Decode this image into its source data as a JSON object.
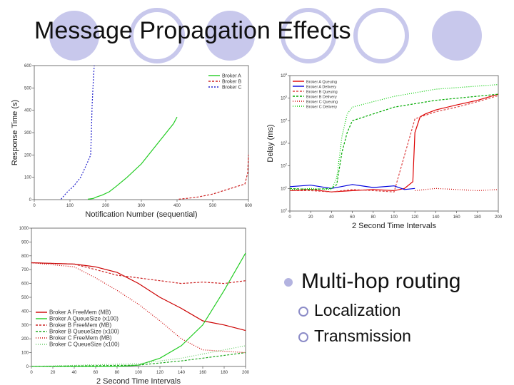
{
  "slide": {
    "title": "Message Propagation Effects",
    "colors": {
      "accent_circle": "#c8c8ec",
      "bullet": "#b3b3e0"
    }
  },
  "bullets": {
    "main": "Multi-hop routing",
    "sub": [
      "Localization",
      "Transmission"
    ]
  },
  "chart_data": [
    {
      "type": "line",
      "xlabel": "Notification Number (sequential)",
      "ylabel": "Response Time (s)",
      "xlim": [
        0,
        600
      ],
      "ylim": [
        0,
        600
      ],
      "xticks": [
        0,
        100,
        200,
        300,
        400,
        500,
        600
      ],
      "yticks": [
        0,
        100,
        200,
        300,
        400,
        500,
        600
      ],
      "legend_position": "top-right",
      "series": [
        {
          "name": "Broker A",
          "color": "#22cc22",
          "dash": "",
          "x": [
            150,
            165,
            175,
            190,
            210,
            230,
            260,
            300,
            340,
            370,
            390,
            400
          ],
          "y": [
            2,
            5,
            12,
            20,
            35,
            60,
            100,
            160,
            240,
            300,
            340,
            370
          ]
        },
        {
          "name": "Broker B",
          "color": "#cc2222",
          "dash": "3,2",
          "x": [
            405,
            430,
            460,
            500,
            540,
            570,
            590,
            598,
            600
          ],
          "y": [
            2,
            6,
            12,
            25,
            45,
            60,
            70,
            120,
            200
          ]
        },
        {
          "name": "Broker C",
          "color": "#2222cc",
          "dash": "2,2",
          "x": [
            75,
            90,
            110,
            130,
            150,
            158,
            160,
            162,
            165,
            168
          ],
          "y": [
            2,
            30,
            60,
            100,
            170,
            200,
            300,
            420,
            520,
            600
          ]
        }
      ]
    },
    {
      "type": "line",
      "xlabel": "2 Second Time Intervals",
      "ylabel": "Delay (ms)",
      "xlim": [
        0,
        200
      ],
      "ylim": [
        0,
        1000000
      ],
      "yscale": "log",
      "xticks": [
        0,
        20,
        40,
        60,
        80,
        100,
        120,
        140,
        160,
        180,
        200
      ],
      "ytick_exponents": [
        0,
        1,
        2,
        3,
        4,
        5,
        6
      ],
      "legend_position": "top-left",
      "series": [
        {
          "name": "Broker A Queuing",
          "color": "#dd0000",
          "dash": "",
          "x": [
            0,
            20,
            40,
            60,
            80,
            100,
            110,
            118,
            120,
            125,
            130,
            140,
            160,
            180,
            200
          ],
          "y": [
            8,
            9,
            7,
            8,
            9,
            8,
            10,
            20,
            3000,
            15000,
            20000,
            30000,
            50000,
            80000,
            150000
          ]
        },
        {
          "name": "Broker A Delivery",
          "color": "#0000dd",
          "dash": "",
          "x": [
            0,
            20,
            40,
            60,
            80,
            100,
            110,
            120
          ],
          "y": [
            12,
            14,
            10,
            15,
            11,
            13,
            9,
            10
          ]
        },
        {
          "name": "Broker B Queuing",
          "color": "#dd4444",
          "dash": "3,2",
          "x": [
            0,
            20,
            40,
            60,
            80,
            100,
            120,
            140,
            160,
            180,
            200
          ],
          "y": [
            8,
            8,
            7,
            9,
            8,
            7,
            12000,
            25000,
            40000,
            70000,
            130000
          ]
        },
        {
          "name": "Broker B Delivery",
          "color": "#00aa00",
          "dash": "3,2",
          "x": [
            0,
            20,
            40,
            45,
            50,
            55,
            60,
            80,
            100,
            140,
            200
          ],
          "y": [
            10,
            9,
            10,
            15,
            400,
            3000,
            10000,
            20000,
            40000,
            80000,
            150000
          ]
        },
        {
          "name": "Broker C Queuing",
          "color": "#cc0000",
          "dash": "1,2",
          "x": [
            120,
            140,
            160,
            180,
            200
          ],
          "y": [
            8,
            10,
            9,
            8,
            9
          ]
        },
        {
          "name": "Broker C Delivery",
          "color": "#00cc00",
          "dash": "1,2",
          "x": [
            0,
            20,
            40,
            45,
            50,
            55,
            60,
            80,
            100,
            140,
            200
          ],
          "y": [
            9,
            10,
            9,
            30,
            2000,
            20000,
            40000,
            70000,
            120000,
            250000,
            400000
          ]
        }
      ]
    },
    {
      "type": "line",
      "xlabel": "2 Second Time Intervals",
      "ylabel": "",
      "xlim": [
        0,
        200
      ],
      "ylim": [
        0,
        1000
      ],
      "xticks": [
        0,
        20,
        40,
        60,
        80,
        100,
        120,
        140,
        160,
        180,
        200
      ],
      "yticks": [
        0,
        100,
        200,
        300,
        400,
        500,
        600,
        700,
        800,
        900,
        1000
      ],
      "legend_position": "bottom-left",
      "series": [
        {
          "name": "Broker A FreeMem (MB)",
          "color": "#cc0000",
          "dash": "",
          "x": [
            0,
            20,
            40,
            60,
            80,
            100,
            120,
            140,
            160,
            180,
            200
          ],
          "y": [
            750,
            745,
            740,
            720,
            680,
            600,
            500,
            420,
            330,
            300,
            260
          ]
        },
        {
          "name": "Broker A QueueSize (x100)",
          "color": "#22cc22",
          "dash": "",
          "x": [
            0,
            80,
            100,
            120,
            140,
            160,
            180,
            200
          ],
          "y": [
            0,
            0,
            10,
            60,
            150,
            300,
            550,
            820
          ]
        },
        {
          "name": "Broker B FreeMem (MB)",
          "color": "#cc2222",
          "dash": "3,2",
          "x": [
            0,
            40,
            60,
            80,
            100,
            120,
            140,
            160,
            180,
            200
          ],
          "y": [
            750,
            740,
            700,
            660,
            640,
            620,
            600,
            610,
            600,
            620
          ]
        },
        {
          "name": "Broker B QueueSize (x100)",
          "color": "#22aa22",
          "dash": "3,2",
          "x": [
            0,
            100,
            140,
            180,
            200
          ],
          "y": [
            0,
            10,
            40,
            80,
            100
          ]
        },
        {
          "name": "Broker C FreeMem (MB)",
          "color": "#cc0000",
          "dash": "1,2",
          "x": [
            0,
            40,
            60,
            80,
            100,
            120,
            140,
            160,
            180,
            200
          ],
          "y": [
            750,
            720,
            640,
            550,
            450,
            330,
            200,
            120,
            110,
            100
          ]
        },
        {
          "name": "Broker C QueueSize (x100)",
          "color": "#66cc66",
          "dash": "1,2",
          "x": [
            0,
            100,
            140,
            180,
            200
          ],
          "y": [
            0,
            20,
            60,
            120,
            150
          ]
        }
      ]
    }
  ]
}
